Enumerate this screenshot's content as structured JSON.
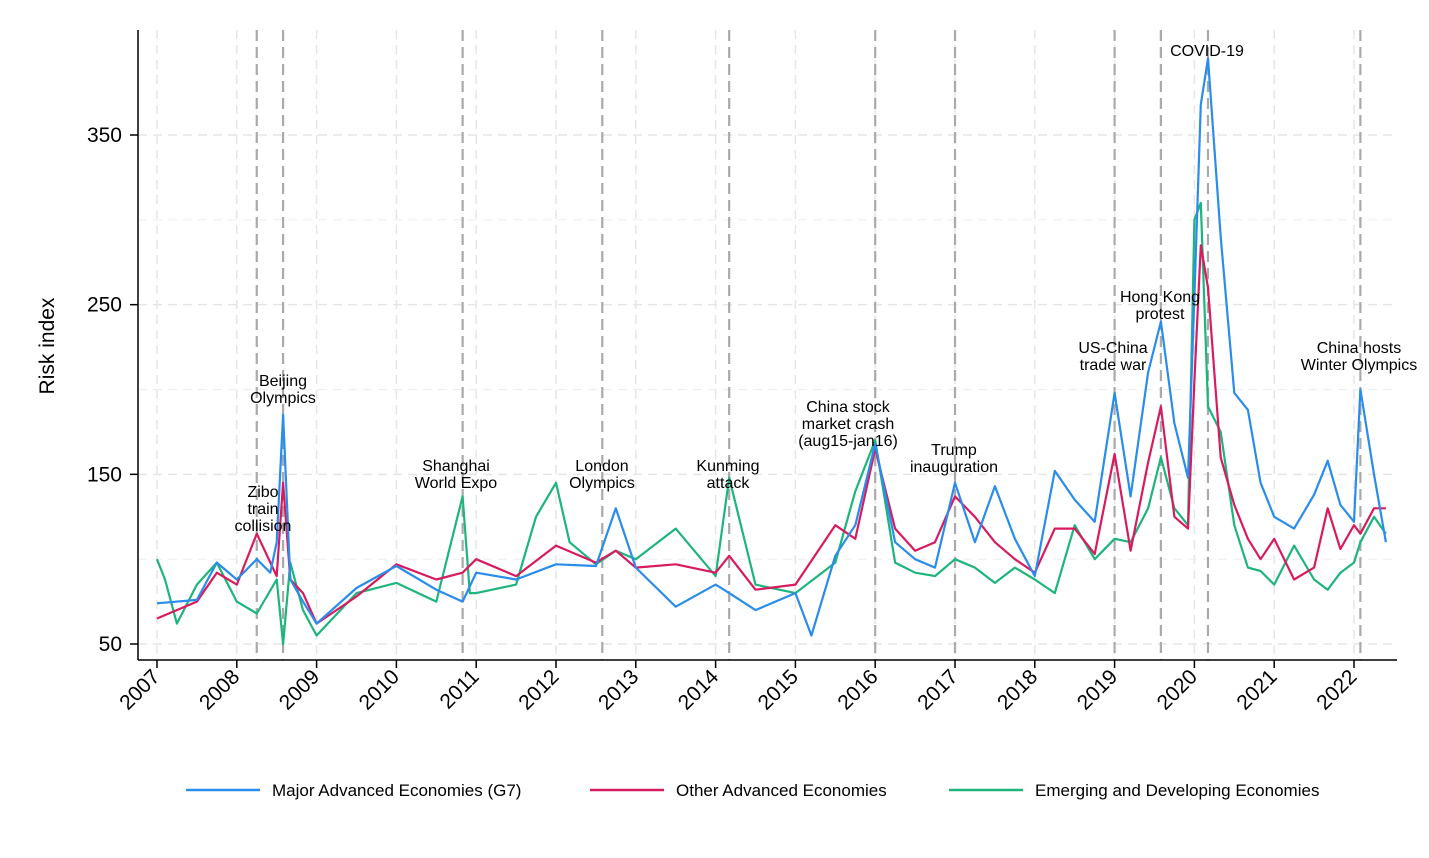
{
  "chart_data": {
    "type": "line",
    "title": "",
    "xlabel": "",
    "ylabel": "Risk index",
    "xlim": [
      2007.0,
      2022.5
    ],
    "ylim": [
      42,
      402
    ],
    "y_ticks": [
      50,
      150,
      250,
      350
    ],
    "x_ticks": [
      "2007",
      "2008",
      "2009",
      "2010",
      "2011",
      "2012",
      "2013",
      "2014",
      "2015",
      "2016",
      "2017",
      "2018",
      "2019",
      "2020",
      "2021",
      "2022"
    ],
    "grid": true,
    "legend_position": "bottom",
    "colors": {
      "g7": "#2A8CEB",
      "other": "#D81B60",
      "emerging": "#1DB57C",
      "event_line": "#AAAAAA"
    },
    "events": [
      {
        "date": 2008.25,
        "label": [
          "Zibo",
          "train",
          "collision"
        ]
      },
      {
        "date": 2008.58,
        "label": [
          "Beijing",
          "Olympics"
        ]
      },
      {
        "date": 2010.83,
        "label": [
          "Shanghai",
          "World Expo"
        ]
      },
      {
        "date": 2012.58,
        "label": [
          "London",
          "Olympics"
        ]
      },
      {
        "date": 2014.17,
        "label": [
          "Kunming",
          "attack"
        ]
      },
      {
        "date": 2016.0,
        "label": [
          "China stock",
          "market crash",
          "(aug15-jan16)"
        ]
      },
      {
        "date": 2017.0,
        "label": [
          "Trump",
          "inauguration"
        ]
      },
      {
        "date": 2019.0,
        "label": [
          "US-China",
          "trade war"
        ]
      },
      {
        "date": 2019.58,
        "label": [
          "Hong Kong",
          "protest"
        ]
      },
      {
        "date": 2020.17,
        "label": [
          "COVID-19"
        ]
      },
      {
        "date": 2022.08,
        "label": [
          "China hosts",
          "Winter Olympics"
        ]
      }
    ],
    "series": [
      {
        "name": "Major Advanced Economies (G7)",
        "key": "g7",
        "x": [
          2007,
          2007.5,
          2007.75,
          2008,
          2008.25,
          2008.42,
          2008.5,
          2008.58,
          2008.67,
          2008.83,
          2009,
          2009.5,
          2010,
          2010.5,
          2010.83,
          2011,
          2011.5,
          2012,
          2012.5,
          2012.75,
          2013,
          2013.5,
          2014,
          2014.17,
          2014.5,
          2015,
          2015.2,
          2015.5,
          2015.75,
          2016,
          2016.25,
          2016.5,
          2016.75,
          2017,
          2017.25,
          2017.5,
          2017.75,
          2018,
          2018.25,
          2018.5,
          2018.75,
          2019,
          2019.2,
          2019.42,
          2019.58,
          2019.75,
          2019.92,
          2020,
          2020.08,
          2020.17,
          2020.33,
          2020.5,
          2020.67,
          2020.83,
          2021,
          2021.25,
          2021.5,
          2021.67,
          2021.83,
          2022,
          2022.08,
          2022.25,
          2022.4
        ],
        "values": [
          74,
          76,
          98,
          88,
          100,
          92,
          110,
          185,
          88,
          75,
          62,
          83,
          96,
          82,
          75,
          92,
          88,
          97,
          96,
          130,
          95,
          72,
          85,
          80,
          70,
          80,
          55,
          102,
          120,
          168,
          110,
          100,
          95,
          145,
          110,
          143,
          112,
          90,
          152,
          135,
          122,
          198,
          137,
          210,
          240,
          180,
          148,
          255,
          368,
          395,
          290,
          198,
          188,
          145,
          125,
          118,
          138,
          158,
          132,
          122,
          200,
          150,
          110
        ]
      },
      {
        "name": "Other Advanced Economies",
        "key": "other",
        "x": [
          2007,
          2007.5,
          2007.75,
          2008,
          2008.25,
          2008.5,
          2008.58,
          2008.67,
          2008.83,
          2009,
          2009.5,
          2010,
          2010.5,
          2010.83,
          2011,
          2011.5,
          2012,
          2012.5,
          2012.75,
          2013,
          2013.5,
          2014,
          2014.17,
          2014.5,
          2015,
          2015.5,
          2015.75,
          2016,
          2016.25,
          2016.5,
          2016.75,
          2017,
          2017.25,
          2017.5,
          2017.75,
          2018,
          2018.25,
          2018.5,
          2018.75,
          2019,
          2019.2,
          2019.42,
          2019.58,
          2019.75,
          2019.92,
          2020,
          2020.08,
          2020.17,
          2020.33,
          2020.5,
          2020.67,
          2020.83,
          2021,
          2021.25,
          2021.5,
          2021.67,
          2021.83,
          2022,
          2022.08,
          2022.25,
          2022.4
        ],
        "values": [
          65,
          75,
          92,
          85,
          115,
          90,
          145,
          88,
          80,
          62,
          78,
          97,
          88,
          92,
          100,
          90,
          108,
          98,
          105,
          95,
          97,
          92,
          102,
          82,
          85,
          120,
          112,
          165,
          118,
          105,
          110,
          137,
          125,
          110,
          100,
          92,
          118,
          118,
          103,
          162,
          105,
          157,
          190,
          125,
          118,
          205,
          285,
          260,
          160,
          132,
          112,
          100,
          112,
          88,
          95,
          130,
          106,
          120,
          115,
          130,
          130
        ]
      },
      {
        "name": "Emerging and Developing Economies",
        "key": "emerging",
        "x": [
          2007,
          2007.1,
          2007.25,
          2007.5,
          2007.75,
          2008,
          2008.25,
          2008.5,
          2008.58,
          2008.67,
          2008.83,
          2009,
          2009.5,
          2010,
          2010.5,
          2010.83,
          2010.92,
          2011,
          2011.5,
          2011.75,
          2012,
          2012.17,
          2012.5,
          2012.75,
          2013,
          2013.5,
          2014,
          2014.17,
          2014.5,
          2015,
          2015.5,
          2015.75,
          2016,
          2016.25,
          2016.5,
          2016.75,
          2017,
          2017.25,
          2017.5,
          2017.75,
          2018,
          2018.25,
          2018.5,
          2018.75,
          2019,
          2019.2,
          2019.42,
          2019.58,
          2019.75,
          2019.92,
          2020,
          2020.08,
          2020.17,
          2020.33,
          2020.5,
          2020.67,
          2020.83,
          2021,
          2021.25,
          2021.5,
          2021.67,
          2021.83,
          2022,
          2022.08,
          2022.25,
          2022.4
        ],
        "values": [
          100,
          88,
          62,
          85,
          98,
          75,
          68,
          88,
          50,
          98,
          70,
          55,
          80,
          86,
          75,
          137,
          80,
          80,
          85,
          125,
          145,
          110,
          97,
          105,
          100,
          118,
          90,
          148,
          85,
          80,
          98,
          140,
          170,
          98,
          92,
          90,
          100,
          95,
          86,
          95,
          88,
          80,
          120,
          100,
          112,
          110,
          130,
          160,
          130,
          120,
          300,
          310,
          190,
          175,
          120,
          95,
          93,
          85,
          108,
          88,
          82,
          92,
          98,
          110,
          125,
          115
        ]
      }
    ]
  },
  "legend": {
    "items": [
      {
        "label": "Major Advanced Economies (G7)",
        "color": "#2A8CEB"
      },
      {
        "label": "Other Advanced Economies",
        "color": "#D81B60"
      },
      {
        "label": "Emerging and Developing Economies",
        "color": "#1DB57C"
      }
    ]
  }
}
